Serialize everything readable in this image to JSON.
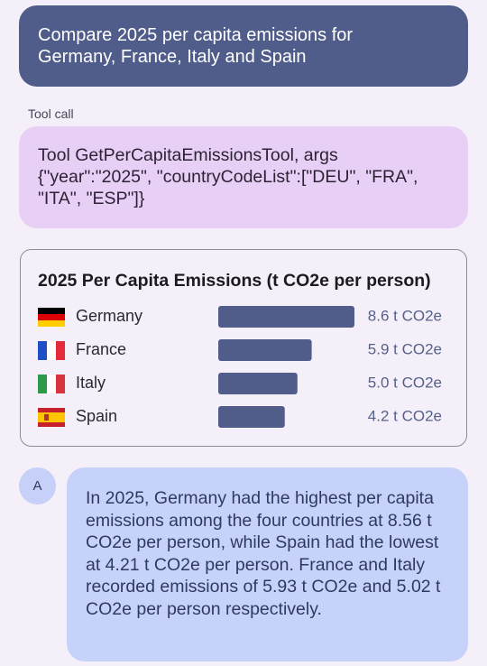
{
  "user_message": "Compare 2025 per capita emissions for Germany, France, Italy and Spain",
  "tool_call": {
    "label": "Tool call",
    "text": "Tool GetPerCapitaEmissionsTool, args {\"year\":\"2025\", \"countryCodeList\":[\"DEU\", \"FRA\", \"ITA\", \"ESP\"]}"
  },
  "chart_data": {
    "type": "bar",
    "orientation": "horizontal",
    "title": "2025 Per Capita Emissions (t CO2e per person)",
    "categories": [
      "Germany",
      "France",
      "Italy",
      "Spain"
    ],
    "values": [
      8.6,
      5.9,
      5.0,
      4.2
    ],
    "value_labels": [
      "8.6 t CO2e",
      "5.9 t CO2e",
      "5.0 t CO2e",
      "4.2 t CO2e"
    ],
    "color": "#505d8a"
  },
  "assistant": {
    "avatar": "A",
    "text": "In 2025, Germany had the highest per capita emissions among the four countries at 8.56 t CO2e per person, while Spain had the lowest at 4.21 t CO2e per person. France and Italy recorded emissions of 5.93 t CO2e and 5.02 t CO2e per person respectively."
  }
}
